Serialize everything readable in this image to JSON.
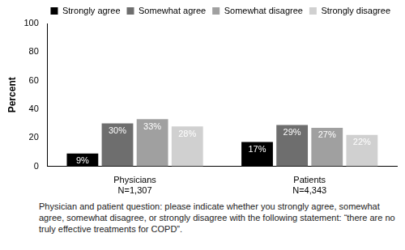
{
  "chart_data": {
    "type": "bar",
    "y_label": "Percent",
    "caption": "Physician and patient question: please indicate whether you strongly agree, somewhat agree, somewhat disagree, or strongly disagree with the following statement: “there are no truly effective treatments for COPD”.",
    "categories": [
      [
        "Physicians",
        "N=1,307"
      ],
      [
        "Patients",
        "N=4,343"
      ]
    ],
    "series": [
      {
        "name": "Strongly agree",
        "color": "#000000",
        "values": [
          9,
          17
        ],
        "value_labels": [
          "9%",
          "17%"
        ]
      },
      {
        "name": "Somewhat agree",
        "color": "#6e6e6e",
        "values": [
          30,
          29
        ],
        "value_labels": [
          "30%",
          "29%"
        ]
      },
      {
        "name": "Somewhat disagree",
        "color": "#a0a0a0",
        "values": [
          33,
          27
        ],
        "value_labels": [
          "33%",
          "27%"
        ]
      },
      {
        "name": "Strongly disagree",
        "color": "#d0d0d0",
        "values": [
          28,
          22
        ],
        "value_labels": [
          "28%",
          "22%"
        ]
      }
    ],
    "ylim": [
      0,
      100
    ],
    "yticks": [
      0,
      20,
      40,
      60,
      80,
      100
    ],
    "grid": false,
    "legend": "top",
    "data_labels": true
  }
}
